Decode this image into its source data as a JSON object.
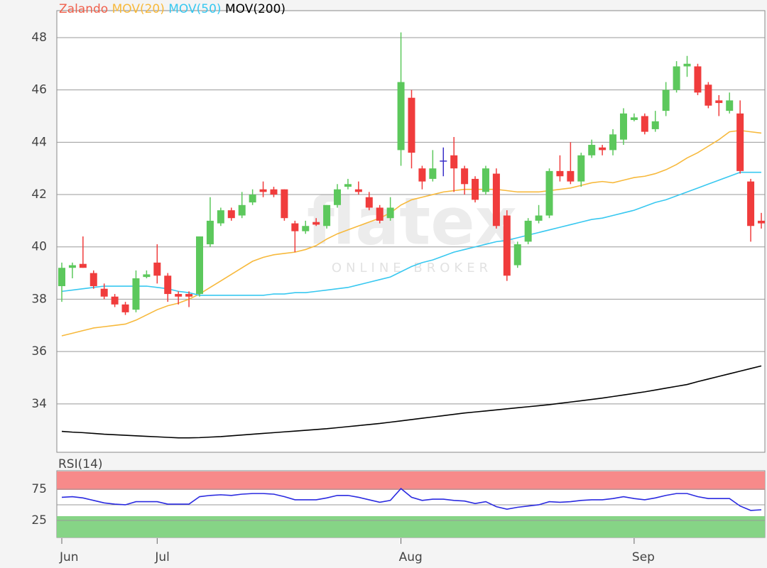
{
  "chart_data": [
    {
      "type": "candlestick",
      "name": "Zalando",
      "color": "#f0604c",
      "up_color": "#5cc85c",
      "down_color": "#f03c3c",
      "flat_color": "#3a2fc8",
      "categories": [
        "Jun",
        null,
        null,
        null,
        null,
        null,
        null,
        null,
        null,
        "Jul",
        null,
        null,
        null,
        null,
        null,
        null,
        null,
        null,
        null,
        null,
        null,
        null,
        null,
        null,
        null,
        null,
        null,
        null,
        null,
        null,
        null,
        null,
        "Aug",
        null,
        null,
        null,
        null,
        null,
        null,
        null,
        null,
        null,
        null,
        null,
        null,
        null,
        null,
        null,
        null,
        null,
        null,
        null,
        null,
        null,
        "Sep",
        null,
        null,
        null,
        null,
        null,
        null,
        null,
        null,
        null,
        null,
        null,
        null
      ],
      "open": [
        38.5,
        39.2,
        39.35,
        39.0,
        38.4,
        38.1,
        37.8,
        37.6,
        38.85,
        39.4,
        38.9,
        38.2,
        38.2,
        38.2,
        40.1,
        40.9,
        41.4,
        41.2,
        41.7,
        42.2,
        42.2,
        42.2,
        40.9,
        40.6,
        40.95,
        40.8,
        41.6,
        42.3,
        42.2,
        41.9,
        41.5,
        41.1,
        43.7,
        45.7,
        43.0,
        42.6,
        43.3,
        43.5,
        43.0,
        42.6,
        42.1,
        42.8,
        41.2,
        39.3,
        40.2,
        41.0,
        41.2,
        42.9,
        42.9,
        42.5,
        43.5,
        43.8,
        43.7,
        44.1,
        44.85,
        45.0,
        44.5,
        45.2,
        46.0,
        46.9,
        46.9,
        46.2,
        45.6,
        45.2,
        45.1,
        42.5,
        41.0
      ],
      "high": [
        39.4,
        39.4,
        40.4,
        39.1,
        38.6,
        38.2,
        37.9,
        39.1,
        39.1,
        40.1,
        39.0,
        38.3,
        38.3,
        40.4,
        41.9,
        41.5,
        41.5,
        42.1,
        42.2,
        42.5,
        42.3,
        42.2,
        41.0,
        41.0,
        41.1,
        41.6,
        42.4,
        42.6,
        42.5,
        42.1,
        41.6,
        41.9,
        48.2,
        46.0,
        43.1,
        43.7,
        43.8,
        44.2,
        43.1,
        42.7,
        43.1,
        43.0,
        41.4,
        40.2,
        41.1,
        41.6,
        43.0,
        43.5,
        44.0,
        43.6,
        44.1,
        43.9,
        44.5,
        45.3,
        45.1,
        45.1,
        45.2,
        46.3,
        47.1,
        47.3,
        47.0,
        46.3,
        45.8,
        45.9,
        45.6,
        42.6,
        41.3
      ],
      "low": [
        37.9,
        38.8,
        39.2,
        38.4,
        38.0,
        37.7,
        37.4,
        37.5,
        38.8,
        38.6,
        37.9,
        37.8,
        37.7,
        38.1,
        40.0,
        40.8,
        41.0,
        41.1,
        41.6,
        41.9,
        41.9,
        41.0,
        39.8,
        40.5,
        40.8,
        40.7,
        41.5,
        42.2,
        42.0,
        41.4,
        40.9,
        41.0,
        43.1,
        43.0,
        42.2,
        42.5,
        42.7,
        42.1,
        42.0,
        41.7,
        42.0,
        40.7,
        38.7,
        39.2,
        40.1,
        40.9,
        41.1,
        42.5,
        42.4,
        42.3,
        43.4,
        43.5,
        43.5,
        43.9,
        44.8,
        44.3,
        44.4,
        45.0,
        45.9,
        46.5,
        45.8,
        45.3,
        45.0,
        45.1,
        42.8,
        40.2,
        40.7
      ],
      "close": [
        39.2,
        39.3,
        39.2,
        38.5,
        38.1,
        37.8,
        37.5,
        38.8,
        38.95,
        38.9,
        38.2,
        38.1,
        38.1,
        40.4,
        41.0,
        41.4,
        41.1,
        41.6,
        42.0,
        42.1,
        42.0,
        41.1,
        40.6,
        40.8,
        40.85,
        41.6,
        42.2,
        42.4,
        42.1,
        41.5,
        41.0,
        41.5,
        46.3,
        43.6,
        42.5,
        43.0,
        43.3,
        43.0,
        42.4,
        41.8,
        43.0,
        40.8,
        38.9,
        40.1,
        41.0,
        41.2,
        42.9,
        42.7,
        42.5,
        43.5,
        43.9,
        43.7,
        44.3,
        45.1,
        44.95,
        44.4,
        44.8,
        46.0,
        46.9,
        47.0,
        45.9,
        45.4,
        45.5,
        45.6,
        42.9,
        40.8,
        40.9
      ],
      "overlays": [
        {
          "name": "MOV(20)",
          "color": "#f7b93c",
          "values": [
            36.6,
            36.7,
            36.8,
            36.9,
            36.95,
            37.0,
            37.05,
            37.2,
            37.4,
            37.6,
            37.75,
            37.85,
            38.0,
            38.2,
            38.45,
            38.7,
            38.95,
            39.2,
            39.45,
            39.6,
            39.7,
            39.75,
            39.8,
            39.9,
            40.05,
            40.3,
            40.5,
            40.65,
            40.8,
            40.95,
            41.1,
            41.3,
            41.6,
            41.8,
            41.9,
            42.0,
            42.1,
            42.15,
            42.2,
            42.2,
            42.2,
            42.2,
            42.15,
            42.1,
            42.1,
            42.1,
            42.15,
            42.2,
            42.25,
            42.35,
            42.45,
            42.5,
            42.45,
            42.55,
            42.65,
            42.7,
            42.8,
            42.95,
            43.15,
            43.4,
            43.6,
            43.85,
            44.1,
            44.4,
            44.45,
            44.4,
            44.35
          ]
        },
        {
          "name": "MOV(50)",
          "color": "#38c8f0",
          "values": [
            38.3,
            38.35,
            38.4,
            38.45,
            38.5,
            38.5,
            38.5,
            38.5,
            38.5,
            38.45,
            38.4,
            38.3,
            38.25,
            38.15,
            38.15,
            38.15,
            38.15,
            38.15,
            38.15,
            38.15,
            38.2,
            38.2,
            38.25,
            38.25,
            38.3,
            38.35,
            38.4,
            38.45,
            38.55,
            38.65,
            38.75,
            38.85,
            39.05,
            39.25,
            39.4,
            39.5,
            39.65,
            39.8,
            39.9,
            40.0,
            40.1,
            40.2,
            40.25,
            40.35,
            40.45,
            40.55,
            40.65,
            40.75,
            40.85,
            40.95,
            41.05,
            41.1,
            41.2,
            41.3,
            41.4,
            41.55,
            41.7,
            41.8,
            41.95,
            42.1,
            42.25,
            42.4,
            42.55,
            42.7,
            42.85,
            42.85,
            42.85
          ]
        },
        {
          "name": "MOV(200)",
          "color": "#000000",
          "values": [
            32.95,
            32.92,
            32.9,
            32.87,
            32.84,
            32.82,
            32.8,
            32.78,
            32.76,
            32.74,
            32.72,
            32.7,
            32.7,
            32.71,
            32.73,
            32.75,
            32.78,
            32.81,
            32.84,
            32.87,
            32.9,
            32.93,
            32.96,
            32.99,
            33.02,
            33.05,
            33.09,
            33.13,
            33.17,
            33.21,
            33.25,
            33.3,
            33.35,
            33.4,
            33.45,
            33.5,
            33.55,
            33.6,
            33.65,
            33.69,
            33.73,
            33.77,
            33.81,
            33.85,
            33.89,
            33.93,
            33.97,
            34.02,
            34.07,
            34.12,
            34.17,
            34.22,
            34.28,
            34.34,
            34.4,
            34.46,
            34.53,
            34.6,
            34.67,
            34.74,
            34.85,
            34.95,
            35.05,
            35.15,
            35.25,
            35.35,
            35.45
          ]
        }
      ],
      "ylim": [
        32.15,
        49.03
      ],
      "yticks": [
        34,
        36,
        38,
        40,
        42,
        44,
        46,
        48
      ],
      "grid": true,
      "watermark": {
        "logo": "flatex",
        "tagline": "ONLINE BROKER"
      }
    },
    {
      "type": "line",
      "series": [
        {
          "name": "RSI(14)",
          "color": "#2a2ae0",
          "values": [
            62,
            63,
            61,
            57,
            53,
            51,
            50,
            55,
            55,
            55,
            51,
            51,
            51,
            63,
            65,
            66,
            65,
            67,
            68,
            68,
            67,
            63,
            58,
            58,
            58,
            61,
            65,
            65,
            62,
            58,
            54,
            57,
            76,
            62,
            57,
            59,
            59,
            57,
            56,
            52,
            55,
            47,
            43,
            46,
            48,
            50,
            55,
            54,
            55,
            57,
            58,
            58,
            60,
            63,
            60,
            58,
            61,
            65,
            68,
            68,
            63,
            60,
            60,
            60,
            48,
            41,
            42
          ]
        }
      ],
      "ylim": [
        -2.3,
        104.5
      ],
      "yticks": [
        25,
        75
      ],
      "reference_lines": [
        50
      ],
      "grid": true
    }
  ]
}
